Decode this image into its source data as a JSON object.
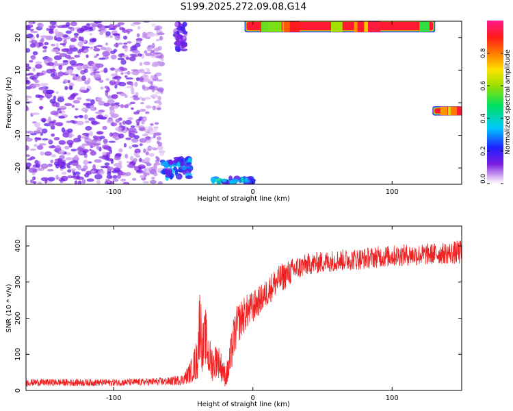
{
  "figure_title": "S199.2025.272.09.08.G14",
  "chart_data": [
    {
      "type": "heatmap",
      "title": "S199.2025.272.09.08.G14",
      "xlabel": "Height of straight line (km)",
      "ylabel": "Frequency (Hz)",
      "xlim": [
        -163,
        150
      ],
      "ylim": [
        -25,
        25
      ],
      "x_ticks": [
        -100,
        0,
        100
      ],
      "x_tick_labels": [
        "-100",
        "0",
        "100"
      ],
      "y_ticks": [
        -20,
        -10,
        0,
        10,
        20
      ],
      "y_tick_labels": [
        "-20",
        "-10",
        "0",
        "10",
        "20"
      ],
      "colorbar": {
        "label": "Normalized spectral amplitude",
        "range": [
          0,
          1
        ],
        "ticks": [
          0,
          0.2,
          0.4,
          0.6,
          0.8
        ],
        "tick_labels": [
          "0.0",
          "0.2",
          "0.4",
          "0.6",
          "0.8"
        ],
        "colormap": "rainbow (white-violet-blue-cyan-green-yellow-orange-red-magenta)"
      },
      "features": [
        {
          "x_range": [
            -163,
            -65
          ],
          "y_range": [
            -25,
            25
          ],
          "amplitude": 0.12,
          "form": "scattered noise"
        },
        {
          "x_range": [
            -65,
            -45
          ],
          "y_range": [
            -23,
            -17
          ],
          "amplitude": 0.3,
          "form": "blob"
        },
        {
          "x_range": [
            -30,
            0
          ],
          "y_range": [
            -25,
            -23
          ],
          "amplitude": 0.35,
          "form": "edge streak"
        },
        {
          "x_range": [
            -55,
            -48
          ],
          "y_range": [
            16,
            25
          ],
          "amplitude": 0.15,
          "form": "edge streak"
        },
        {
          "x_range": [
            -5,
            130
          ],
          "y_range": [
            22,
            25
          ],
          "amplitude": 0.95,
          "form": "strong top streak"
        },
        {
          "x_range": [
            130,
            150
          ],
          "y_range": [
            -3.5,
            -1.5
          ],
          "amplitude": 0.95,
          "form": "strong horizontal streak"
        }
      ]
    },
    {
      "type": "line",
      "xlabel": "Height of straight line (km)",
      "ylabel": "SNR (10 * v/v)",
      "xlim": [
        -163,
        150
      ],
      "ylim": [
        0,
        455
      ],
      "x_ticks": [
        -100,
        0,
        100
      ],
      "x_tick_labels": [
        "-100",
        "0",
        "100"
      ],
      "y_ticks": [
        0,
        100,
        200,
        300,
        400
      ],
      "y_tick_labels": [
        "0",
        "100",
        "200",
        "300",
        "400"
      ],
      "color": "#ee2222",
      "series": [
        {
          "x": [
            -163,
            -140,
            -120,
            -100,
            -80,
            -60,
            -50,
            -45,
            -40,
            -38,
            -36,
            -34,
            -32,
            -30,
            -28,
            -26,
            -24,
            -22,
            -20,
            -18,
            -16,
            -14,
            -12,
            -10,
            -5,
            0,
            5,
            10,
            15,
            20,
            30,
            40,
            50,
            60,
            70,
            80,
            90,
            100,
            110,
            120,
            130,
            140,
            150
          ],
          "values": [
            22,
            22,
            22,
            22,
            23,
            25,
            30,
            50,
            85,
            200,
            110,
            150,
            95,
            80,
            70,
            90,
            75,
            60,
            40,
            50,
            90,
            140,
            170,
            190,
            215,
            230,
            250,
            270,
            295,
            310,
            335,
            350,
            355,
            360,
            362,
            365,
            370,
            372,
            375,
            375,
            378,
            380,
            382
          ],
          "noise_amplitude": [
            10,
            10,
            10,
            10,
            10,
            12,
            15,
            30,
            60,
            110,
            70,
            80,
            60,
            55,
            45,
            50,
            45,
            40,
            30,
            40,
            55,
            60,
            60,
            55,
            50,
            45,
            40,
            40,
            40,
            40,
            35,
            30,
            30,
            30,
            30,
            30,
            30,
            30,
            30,
            30,
            30,
            30,
            35
          ]
        }
      ]
    }
  ]
}
